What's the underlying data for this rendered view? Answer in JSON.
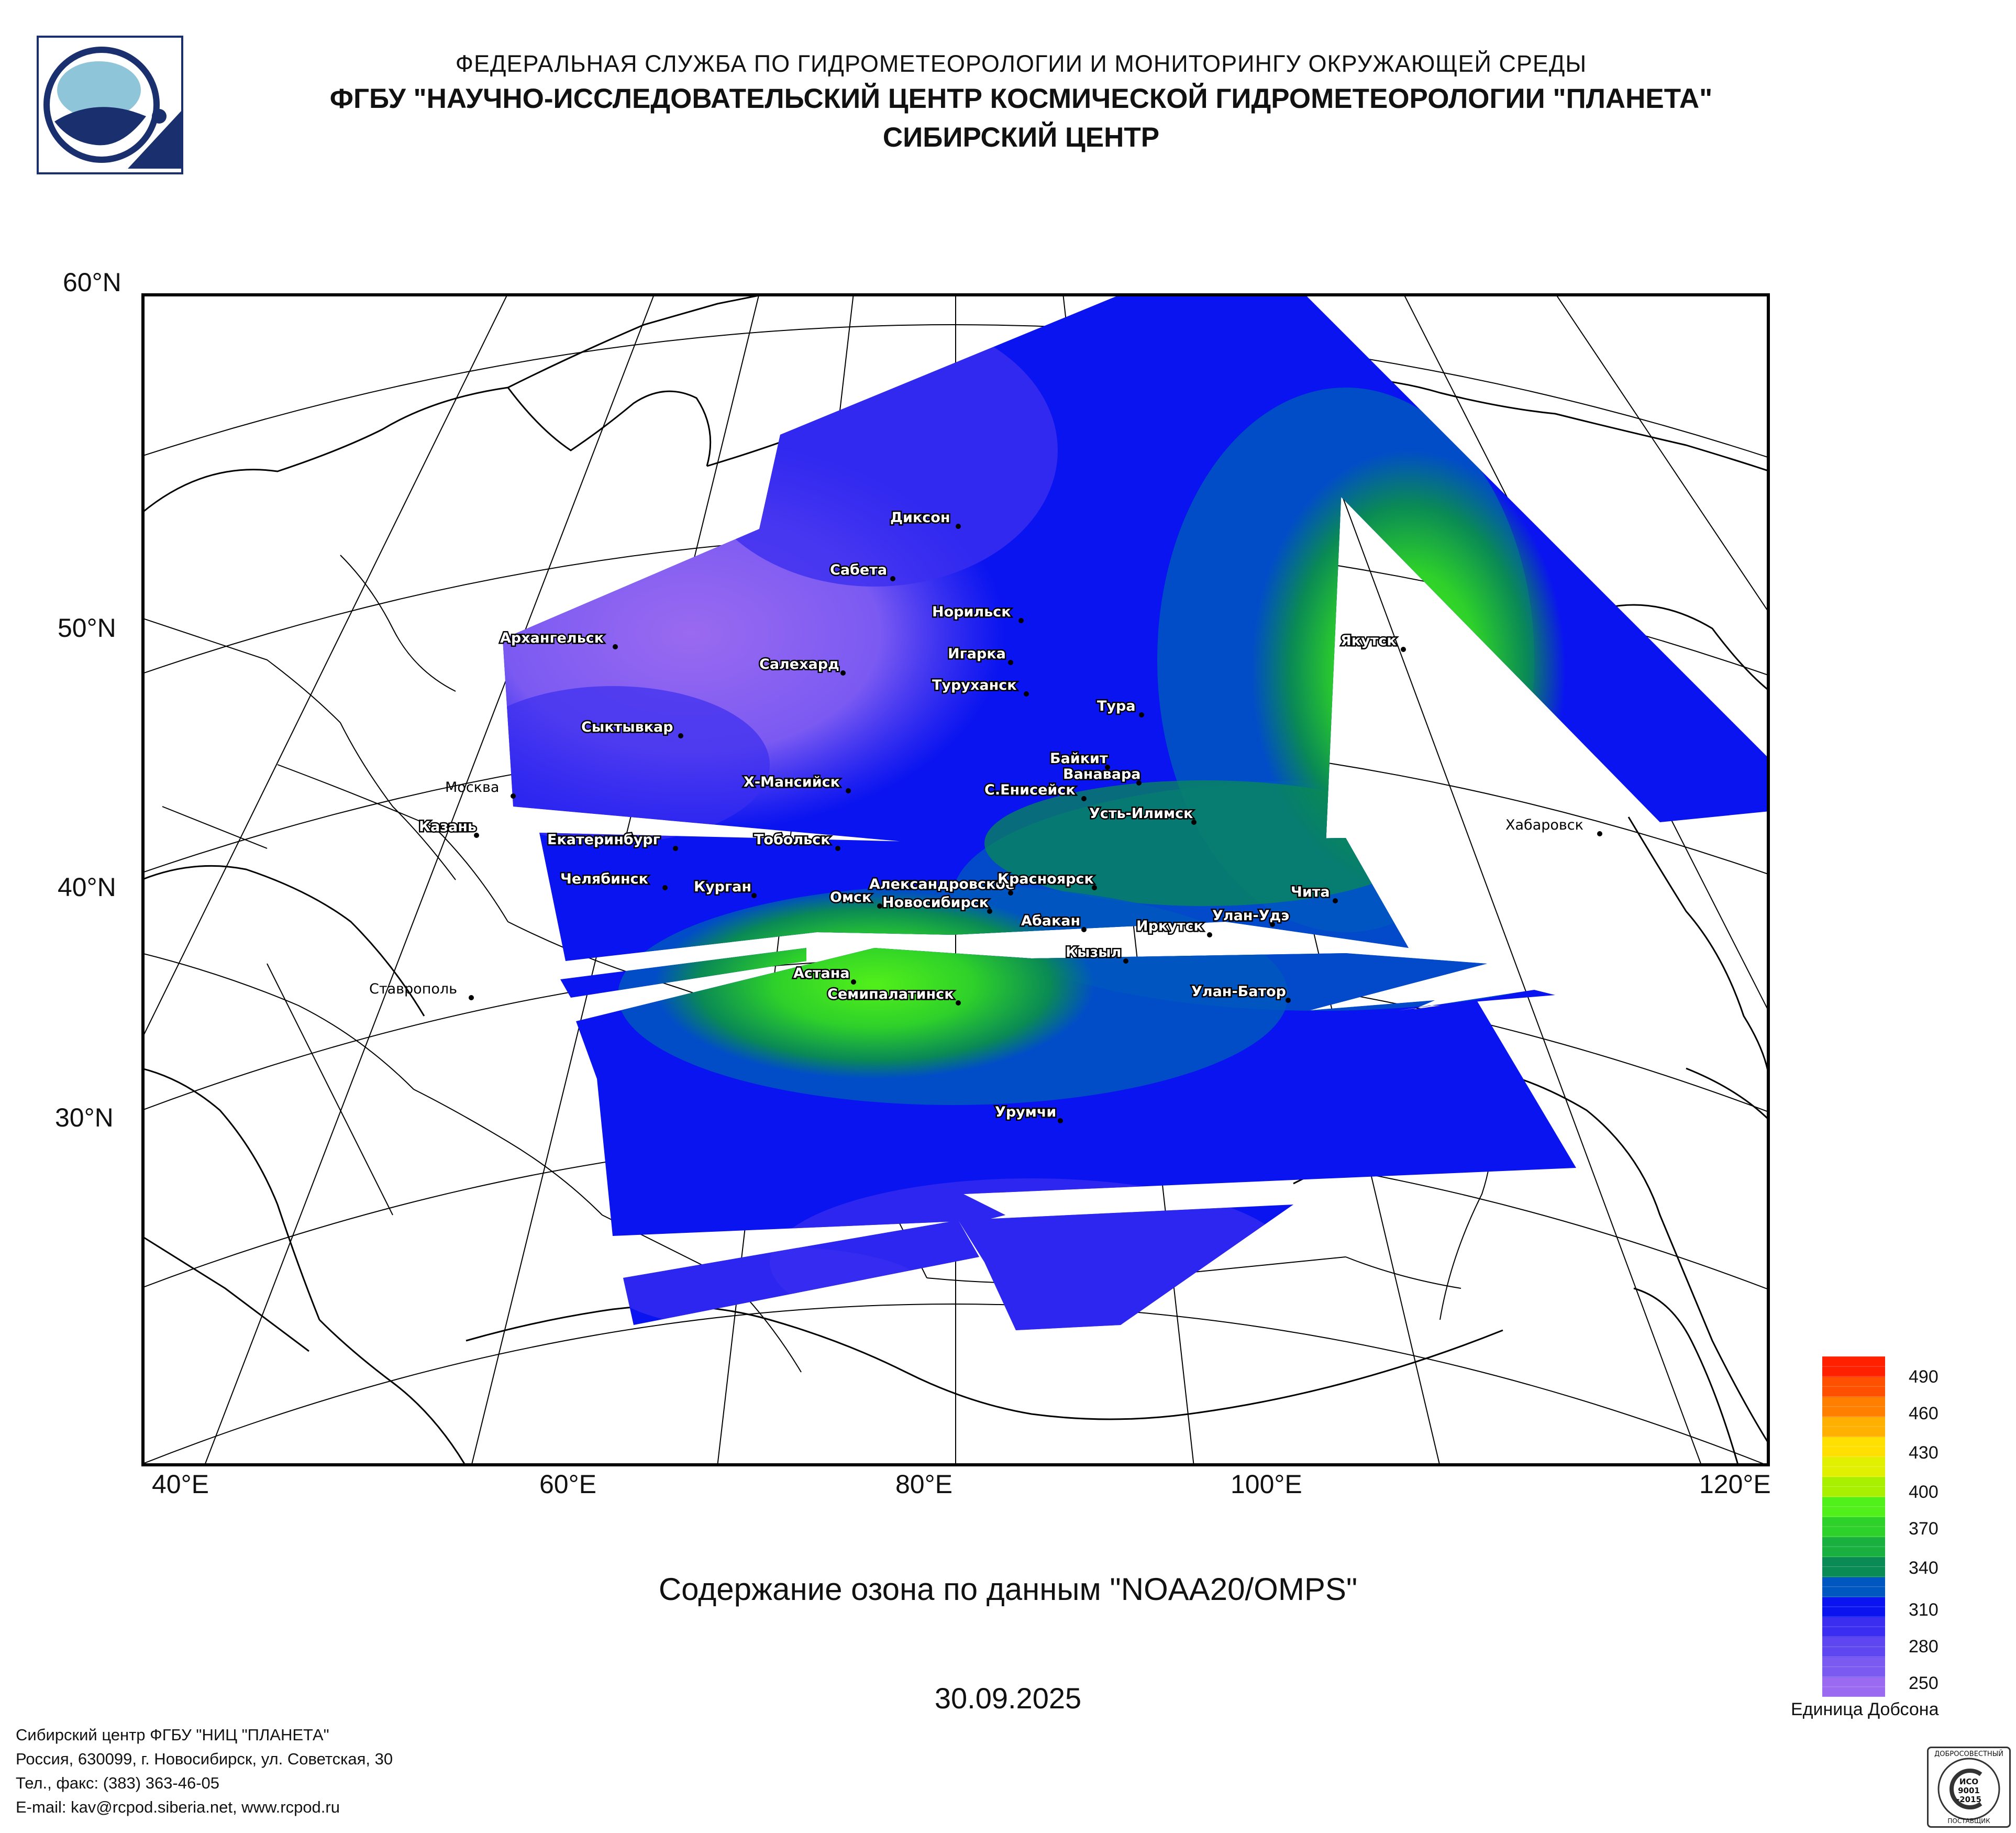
{
  "header": {
    "line1": "ФЕДЕРАЛЬНАЯ СЛУЖБА ПО ГИДРОМЕТЕОРОЛОГИИ И МОНИТОРИНГУ ОКРУЖАЮЩЕЙ СРЕДЫ",
    "line2": "ФГБУ \"НАУЧНО-ИССЛЕДОВАТЕЛЬСКИЙ ЦЕНТР КОСМИЧЕСКОЙ ГИДРОМЕТЕОРОЛОГИИ \"ПЛАНЕТА\"",
    "line3": "СИБИРСКИЙ ЦЕНТР"
  },
  "map": {
    "lat_labels": [
      "60°N",
      "50°N",
      "40°N",
      "30°N"
    ],
    "lon_labels": [
      "40°E",
      "60°E",
      "80°E",
      "100°E",
      "120°E"
    ],
    "cities": [
      "Диксон",
      "Сабета",
      "Норильск",
      "Игарка",
      "Салехард",
      "Туруханск",
      "Тура",
      "Якутск",
      "Архангельск",
      "Сыктывкар",
      "Москва",
      "Х-Мансийск",
      "Байкит",
      "Ванавара",
      "С.Енисейск",
      "Усть-Илимск",
      "Хабаровск",
      "Казань",
      "Екатеринбург",
      "Тобольск",
      "Челябинск",
      "Курган",
      "Омск",
      "Александровское",
      "Новосибирск",
      "Красноярск",
      "Абакан",
      "Чита",
      "Улан-Удэ",
      "Иркутск",
      "Кызыл",
      "Астана",
      "Семипалатинск",
      "Улан-Батор",
      "Ставрополь",
      "Урумчи"
    ]
  },
  "caption": "Содержание озона по данным \"NOAA20/OMPS\"",
  "date": "30.09.2025",
  "legend": {
    "ticks": [
      "490",
      "460",
      "430",
      "400",
      "370",
      "340",
      "310",
      "280",
      "250"
    ],
    "unit": "Единица Добсона",
    "min": 250,
    "max": 500,
    "colors_low_to_high": [
      "#9a6af0",
      "#7b5af2",
      "#5e47f0",
      "#3b2ef0",
      "#0a14f0",
      "#0057c0",
      "#0a8a55",
      "#1ab040",
      "#2ed12a",
      "#52f01a",
      "#a8f000",
      "#e0f000",
      "#ffe000",
      "#ffb000",
      "#ff8000",
      "#ff5000",
      "#ff2000"
    ]
  },
  "footer": {
    "line1": "Сибирский центр ФГБУ \"НИЦ \"ПЛАНЕТА\"",
    "line2": "Россия, 630099, г. Новосибирск, ул. Советская, 30",
    "line3": "Тел., факс: (383) 363-46-05",
    "line4": "E-mail: kav@rcpod.siberia.net, www.rcpod.ru"
  },
  "badge": {
    "line1": "ДОБРОСОВЕСТНЫЙ",
    "line2": "ИСО",
    "line3": "9001",
    "line4": "-2015",
    "line5": "ПОСТАВЩИК"
  }
}
